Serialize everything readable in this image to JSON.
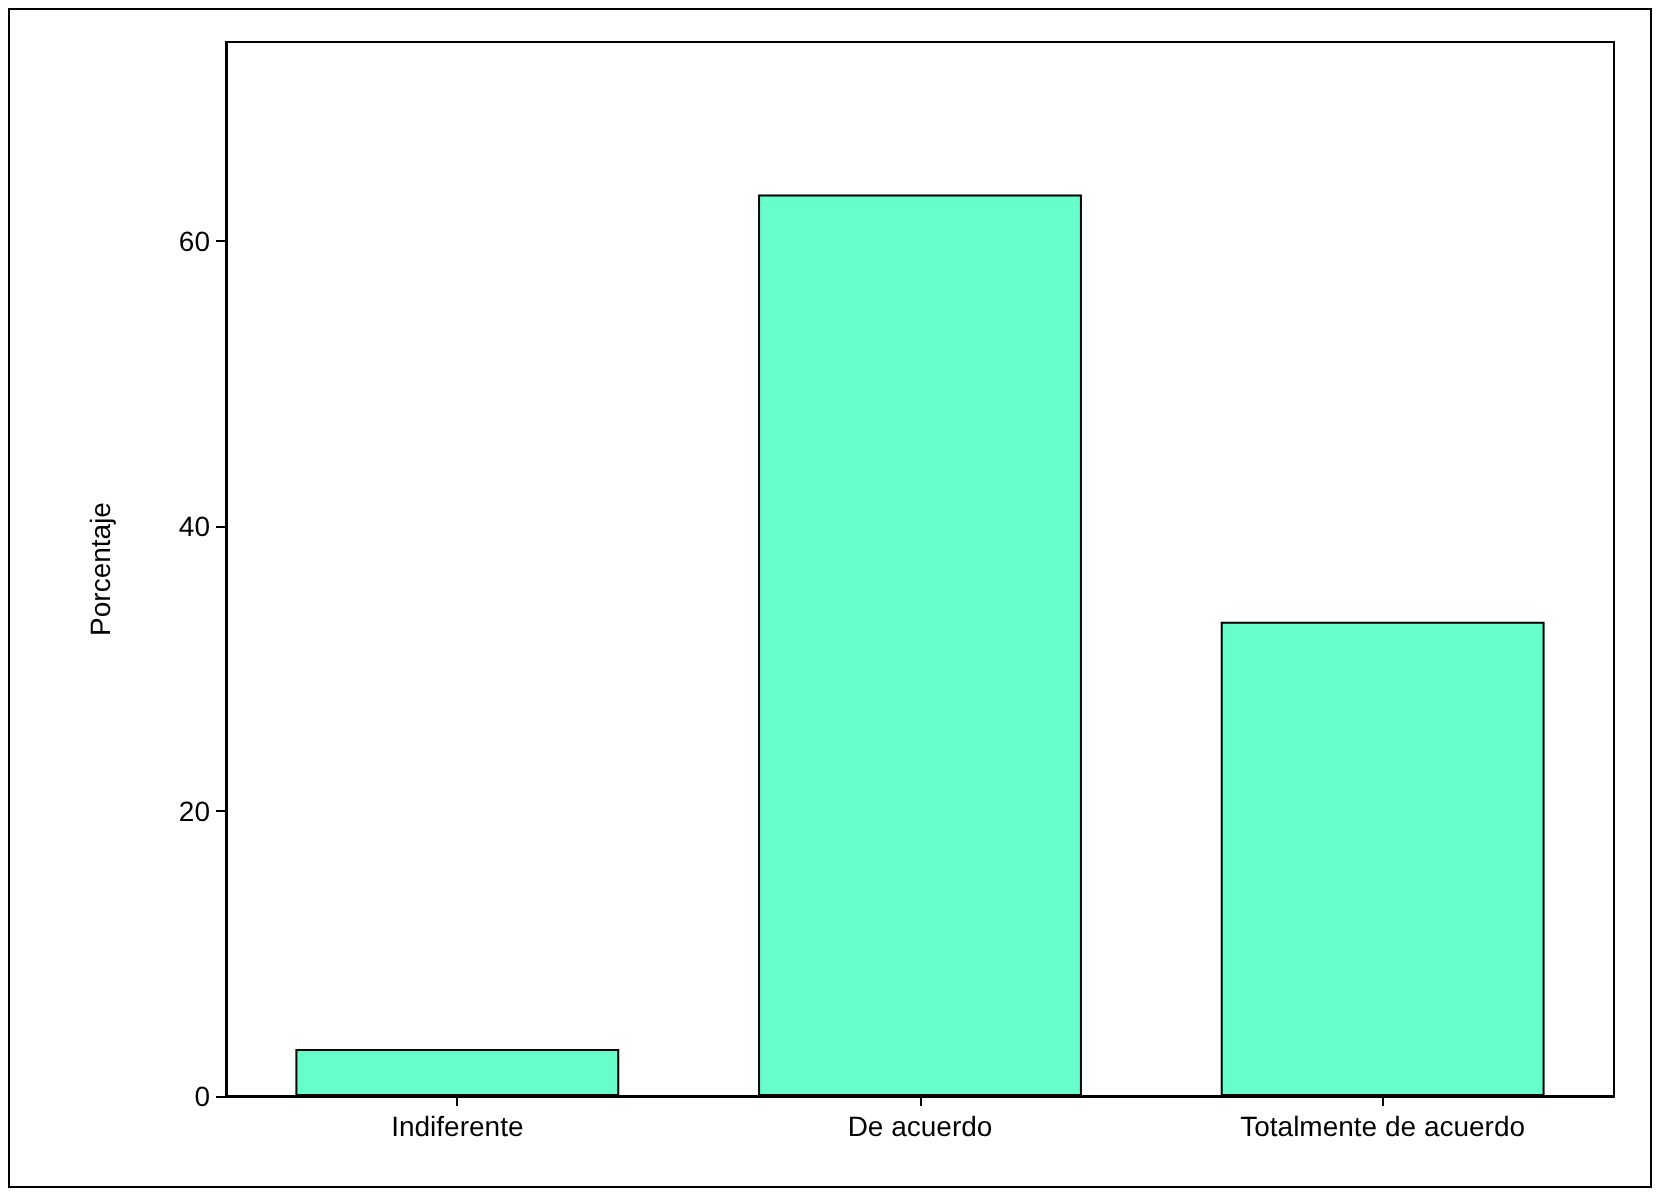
{
  "chart_data": {
    "type": "bar",
    "ylabel": "Porcentaje",
    "categories": [
      "Indiferente",
      "De acuerdo",
      "Totalmente de acuerdo"
    ],
    "values": [
      3.3,
      63.3,
      33.3
    ],
    "color": "#66ffcc",
    "ylim": [
      0,
      74
    ],
    "yticks": [
      0,
      20,
      40,
      60
    ],
    "grid": false
  }
}
